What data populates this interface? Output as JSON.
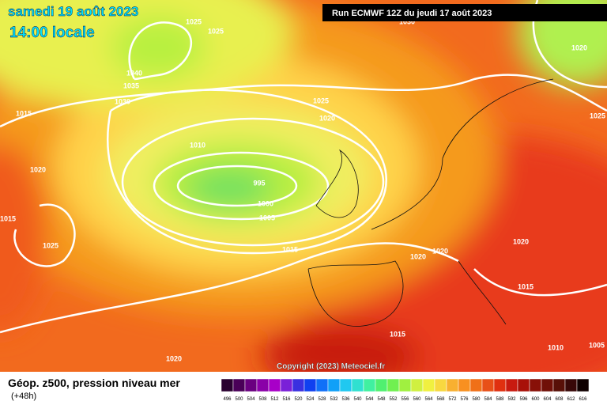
{
  "header": {
    "date": "samedi 19 août 2023",
    "time": "14:00 locale",
    "run": "Run ECMWF 12Z du jeudi 17 août 2023",
    "copyright": "Copyright (2023) Meteociel.fr"
  },
  "isobar_labels": [
    "1025",
    "1025",
    "1030",
    "1020",
    "1040",
    "1035",
    "1030",
    "1015",
    "1025",
    "1020",
    "1010",
    "1025",
    "1020",
    "995",
    "1000",
    "1005",
    "1015",
    "1025",
    "1015",
    "1020",
    "1020",
    "1020",
    "1015",
    "1015",
    "1010",
    "1005",
    "1020"
  ],
  "footer": {
    "title": "Géop. z500, pression niveau mer",
    "lead": "(+48h)"
  },
  "legend": {
    "labels": [
      "496",
      "500",
      "504",
      "508",
      "512",
      "516",
      "520",
      "524",
      "528",
      "532",
      "536",
      "540",
      "544",
      "548",
      "552",
      "556",
      "560",
      "564",
      "568",
      "572",
      "576",
      "580",
      "584",
      "588",
      "592",
      "596",
      "600",
      "604",
      "608",
      "612",
      "616"
    ],
    "colors": [
      "#2a0030",
      "#4a0058",
      "#6a0080",
      "#8a00a8",
      "#a800c8",
      "#7a20d8",
      "#3a30e0",
      "#1040f0",
      "#1070f8",
      "#10a0f8",
      "#20c8f0",
      "#30e0d0",
      "#40f0a0",
      "#50f070",
      "#70f050",
      "#a0f040",
      "#d0f040",
      "#f0f040",
      "#f8d840",
      "#f8b030",
      "#f89020",
      "#f07018",
      "#e85018",
      "#e03010",
      "#c81a10",
      "#a81008",
      "#881008",
      "#701008",
      "#581008",
      "#380808",
      "#100000"
    ]
  }
}
